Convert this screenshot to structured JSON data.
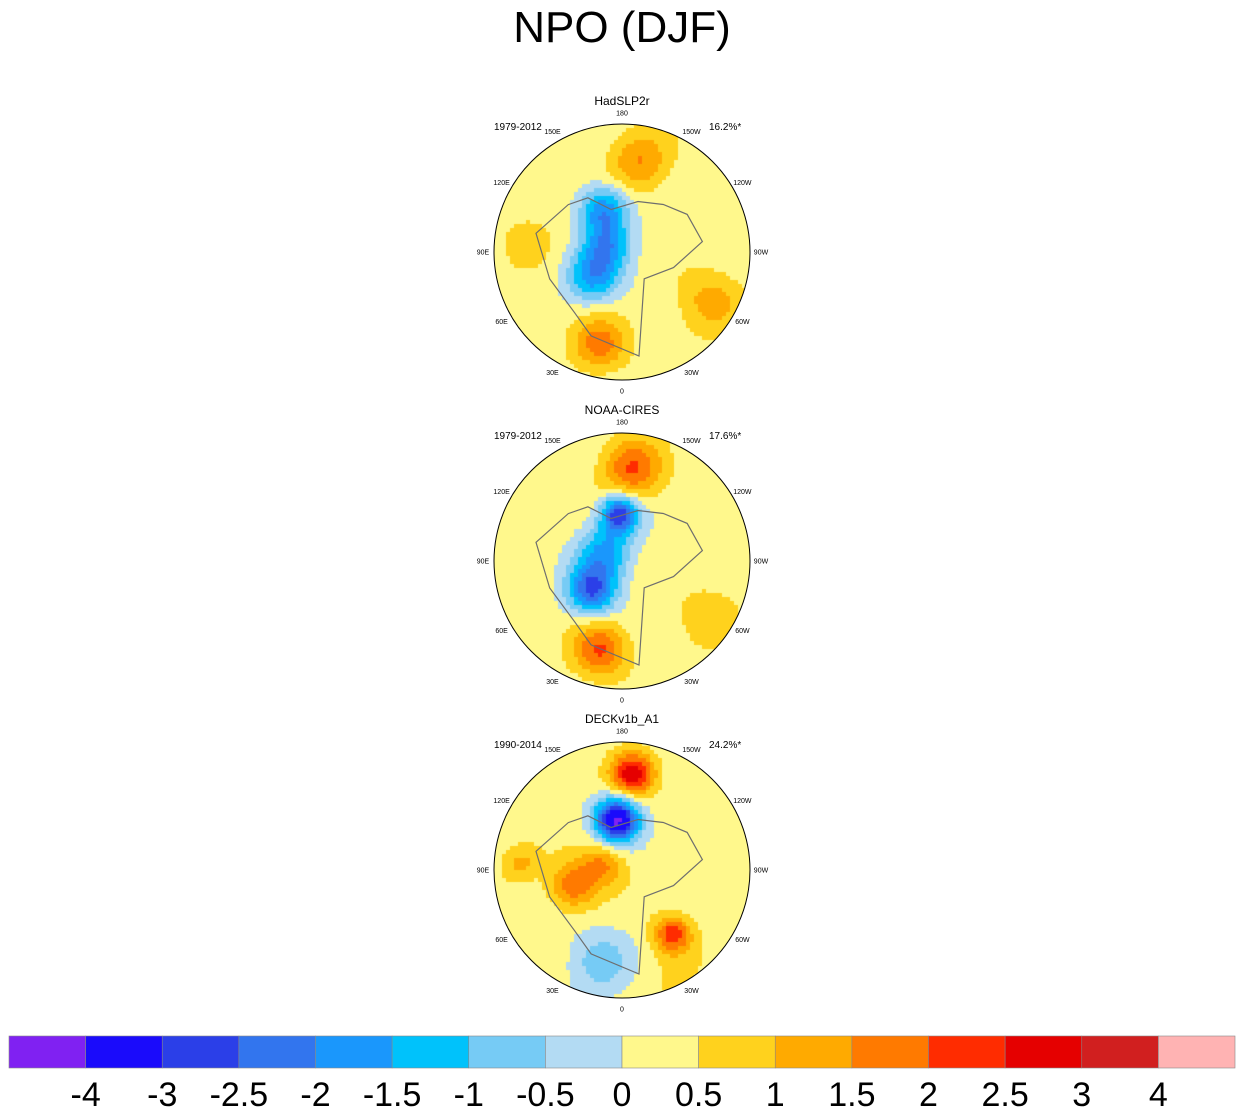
{
  "chart_data": {
    "type": "polar-contour-map",
    "title": "NPO (DJF)",
    "longitude_labels": [
      "180",
      "150E",
      "120E",
      "90E",
      "60E",
      "30E",
      "0",
      "30W",
      "60W",
      "90W",
      "120W",
      "150W"
    ],
    "panels": [
      {
        "name": "HadSLP2r",
        "period": "1979-2012",
        "variance": "16.2%*",
        "centers": [
          {
            "lon": 155,
            "colat": 26,
            "value": -2.1,
            "spread": 9
          },
          {
            "lon": 55,
            "colat": 20,
            "value": -2.0,
            "spread": 10
          },
          {
            "lon": 120,
            "colat": 10,
            "value": -1.6,
            "spread": 9
          },
          {
            "lon": -170,
            "colat": 50,
            "value": 1.3,
            "spread": 11
          },
          {
            "lon": 15,
            "colat": 50,
            "value": 1.6,
            "spread": 10
          },
          {
            "lon": -60,
            "colat": 52,
            "value": 1.0,
            "spread": 12
          },
          {
            "lon": 100,
            "colat": 52,
            "value": 0.3,
            "spread": 16
          }
        ]
      },
      {
        "name": "NOAA-CIRES",
        "period": "1979-2012",
        "variance": "17.6%*",
        "centers": [
          {
            "lon": 175,
            "colat": 26,
            "value": -3.1,
            "spread": 7
          },
          {
            "lon": 50,
            "colat": 22,
            "value": -2.7,
            "spread": 9
          },
          {
            "lon": 120,
            "colat": 12,
            "value": -1.8,
            "spread": 10
          },
          {
            "lon": -175,
            "colat": 50,
            "value": 1.8,
            "spread": 11
          },
          {
            "lon": 15,
            "colat": 48,
            "value": 1.8,
            "spread": 10
          },
          {
            "lon": -60,
            "colat": 52,
            "value": 0.6,
            "spread": 12
          }
        ]
      },
      {
        "name": "DECKv1b_A1",
        "period": "1990-2014",
        "variance": "24.2%*",
        "centers": [
          {
            "lon": 172,
            "colat": 28,
            "value": -4.3,
            "spread": 8
          },
          {
            "lon": -175,
            "colat": 52,
            "value": 2.6,
            "spread": 8
          },
          {
            "lon": 75,
            "colat": 28,
            "value": 1.7,
            "spread": 9
          },
          {
            "lon": 110,
            "colat": 12,
            "value": 1.3,
            "spread": 8
          },
          {
            "lon": -38,
            "colat": 42,
            "value": 2.1,
            "spread": 7
          },
          {
            "lon": 15,
            "colat": 50,
            "value": -1.0,
            "spread": 12
          },
          {
            "lon": -20,
            "colat": 62,
            "value": 0.3,
            "spread": 14
          },
          {
            "lon": 95,
            "colat": 55,
            "value": 0.9,
            "spread": 7
          }
        ]
      }
    ],
    "colorbar": {
      "levels": [
        "-4",
        "-3",
        "-2.5",
        "-2",
        "-1.5",
        "-1",
        "-0.5",
        "0",
        "0.5",
        "1",
        "1.5",
        "2",
        "2.5",
        "3",
        "4"
      ],
      "thresholds": [
        -4,
        -3,
        -2.5,
        -2,
        -1.5,
        -1,
        -0.5,
        0,
        0.5,
        1,
        1.5,
        2,
        2.5,
        3,
        4
      ],
      "colors": [
        "#8021f2",
        "#1a0bfb",
        "#2b3fe8",
        "#3275ee",
        "#1a97fc",
        "#00c2fb",
        "#76cbf5",
        "#b3dbf3",
        "#fff88c",
        "#ffd21d",
        "#ffaa00",
        "#ff7a00",
        "#ff2c00",
        "#e50000",
        "#d11f1f",
        "#ffb3b3"
      ]
    }
  }
}
